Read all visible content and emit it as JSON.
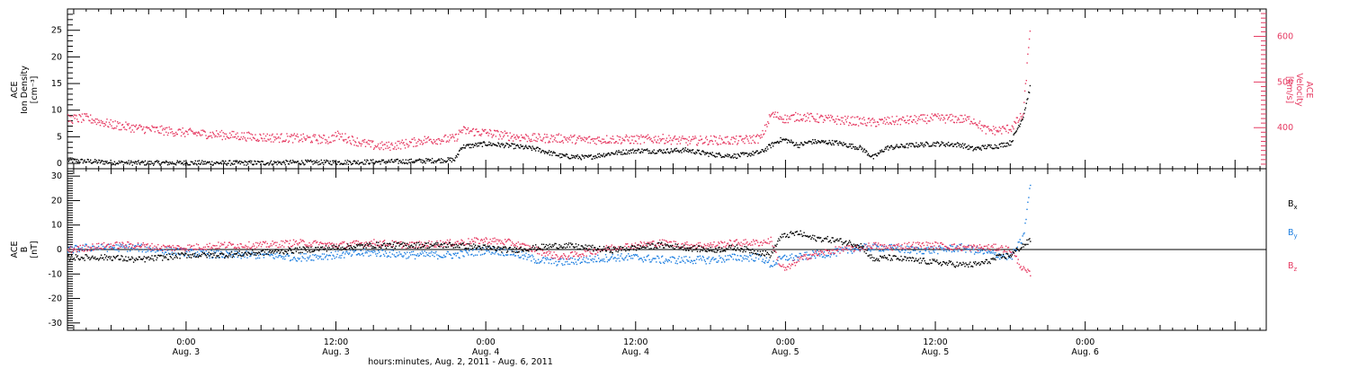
{
  "chart_data": [
    {
      "type": "scatter",
      "panel": "top",
      "title": "",
      "x_axis": {
        "label": "hours:minutes, Aug.  2, 2011 - Aug.  6, 2011",
        "range_hours": [
          -9.5,
          86.5
        ],
        "ticks": [
          {
            "hour": 0,
            "time": "0:00",
            "day": "Aug. 3"
          },
          {
            "hour": 12,
            "time": "12:00",
            "day": "Aug. 3"
          },
          {
            "hour": 24,
            "time": "0:00",
            "day": "Aug. 4"
          },
          {
            "hour": 36,
            "time": "12:00",
            "day": "Aug. 4"
          },
          {
            "hour": 48,
            "time": "0:00",
            "day": "Aug. 5"
          },
          {
            "hour": 60,
            "time": "12:00",
            "day": "Aug. 5"
          },
          {
            "hour": 72,
            "time": "0:00",
            "day": "Aug. 6"
          }
        ]
      },
      "y_left": {
        "label_lines": [
          "ACE",
          "Ion Density",
          "[cm⁻³]"
        ],
        "range": [
          -1,
          29
        ],
        "ticks": [
          0,
          5,
          10,
          15,
          20,
          25
        ]
      },
      "y_right": {
        "label_lines": [
          "ACE",
          "Velocity",
          "[km/s]"
        ],
        "range": [
          310,
          660
        ],
        "ticks": [
          400,
          500,
          600
        ],
        "color": "#e63a62"
      },
      "series": [
        {
          "name": "",
          "axis": "left",
          "color": "#000000",
          "x": [
            -9.5,
            -8,
            -6,
            -4,
            -2,
            0,
            3,
            6,
            9,
            12,
            15,
            18,
            21.5,
            22,
            24,
            26,
            28,
            30,
            32,
            34,
            36,
            38,
            40,
            42,
            44,
            46,
            46.8,
            47.5,
            48,
            49,
            50,
            52,
            54,
            55,
            56,
            58,
            60,
            62,
            63,
            64,
            65,
            66,
            67,
            67.6
          ],
          "y": [
            0.7,
            0.5,
            0.3,
            0.2,
            0.2,
            0.2,
            0.2,
            0.2,
            0.3,
            0.3,
            0.4,
            0.5,
            0.8,
            3.2,
            3.8,
            3.4,
            2.8,
            1.5,
            1.2,
            2.0,
            2.5,
            2.4,
            2.6,
            1.8,
            1.5,
            2.2,
            3.5,
            4.5,
            4.5,
            3.5,
            4.2,
            4.0,
            3.0,
            1.2,
            3.0,
            3.5,
            3.8,
            3.6,
            2.8,
            3.2,
            3.4,
            4.0,
            9.0,
            15.0
          ]
        },
        {
          "name": "",
          "axis": "right",
          "color": "#e63a62",
          "x": [
            -9.5,
            -8,
            -6,
            -4,
            -2,
            0,
            3,
            6,
            9,
            11.5,
            12,
            14,
            15,
            16,
            18,
            19,
            20,
            21.5,
            22,
            24,
            26,
            28,
            30,
            32,
            34,
            36,
            38,
            40,
            42,
            44,
            46,
            46.8,
            47.5,
            48,
            49,
            50,
            52,
            54,
            55,
            56,
            58,
            60,
            62,
            63,
            64,
            65,
            66,
            67,
            67.6
          ],
          "y": [
            420,
            422,
            408,
            400,
            395,
            390,
            385,
            380,
            378,
            375,
            385,
            368,
            362,
            360,
            368,
            374,
            375,
            377,
            395,
            390,
            382,
            378,
            378,
            374,
            376,
            375,
            377,
            372,
            374,
            373,
            378,
            430,
            425,
            420,
            426,
            423,
            418,
            415,
            412,
            415,
            418,
            422,
            420,
            418,
            396,
            395,
            400,
            430,
            640
          ]
        }
      ]
    },
    {
      "type": "scatter",
      "panel": "bottom",
      "title": "",
      "y_left": {
        "label_lines": [
          "ACE",
          "B",
          "[nT]"
        ],
        "range": [
          -33,
          33
        ],
        "ticks": [
          -30,
          -20,
          -10,
          0,
          10,
          20,
          30
        ]
      },
      "legend_position": "right",
      "series": [
        {
          "name": "Bx",
          "name_main": "B",
          "name_sub": "x",
          "color": "#000000",
          "x": [
            -9.5,
            -8,
            -6,
            -4,
            -2,
            0,
            3,
            6,
            9,
            12,
            15,
            18,
            21.5,
            24,
            26,
            28,
            30,
            32,
            34,
            36,
            38,
            40,
            42,
            44,
            46,
            46.8,
            47.5,
            48,
            49,
            50,
            52,
            54,
            55,
            56,
            58,
            60,
            62,
            63,
            64,
            65,
            66,
            67,
            67.6
          ],
          "y": [
            -3,
            -3,
            -3,
            -4,
            -3,
            -2,
            -2,
            -1,
            0,
            1,
            2,
            2,
            2,
            1,
            0,
            1,
            2,
            1,
            0,
            1,
            2,
            1,
            0,
            1,
            -1,
            -2,
            5,
            6,
            7,
            5,
            4,
            2,
            -4,
            -3,
            -4,
            -5,
            -6,
            -6,
            -5,
            -3,
            -2,
            2,
            4
          ]
        },
        {
          "name": "By",
          "name_main": "B",
          "name_sub": "y",
          "color": "#1f7fe0",
          "x": [
            -9.5,
            -8,
            -6,
            -4,
            -2,
            0,
            3,
            6,
            9,
            12,
            15,
            18,
            21.5,
            24,
            26,
            28,
            30,
            32,
            34,
            36,
            38,
            40,
            42,
            44,
            46,
            46.8,
            47.5,
            48,
            49,
            50,
            52,
            54,
            55,
            56,
            58,
            60,
            62,
            63,
            64,
            65,
            66,
            67,
            67.6
          ],
          "y": [
            0,
            1,
            1,
            1,
            0,
            -1,
            -2,
            -2,
            -3,
            -2,
            -1,
            -2,
            -2,
            0,
            -1,
            -4,
            -5,
            -4,
            -3,
            -3,
            -4,
            -4,
            -4,
            -3,
            -3,
            -6,
            -4,
            -3,
            -3,
            -2,
            -1,
            1,
            1,
            1,
            0,
            0,
            1,
            0,
            -1,
            -2,
            -3,
            5,
            28
          ]
        },
        {
          "name": "Bz",
          "name_main": "B",
          "name_sub": "z",
          "color": "#e63a62",
          "x": [
            -9.5,
            -8,
            -6,
            -4,
            -2,
            0,
            3,
            6,
            9,
            12,
            15,
            18,
            21.5,
            24,
            26,
            28,
            30,
            32,
            34,
            36,
            38,
            40,
            42,
            44,
            46,
            46.8,
            47.5,
            48,
            49,
            50,
            52,
            54,
            55,
            56,
            58,
            60,
            62,
            63,
            64,
            65,
            66,
            67,
            67.6
          ],
          "y": [
            0,
            1,
            2,
            2,
            1,
            1,
            2,
            2,
            3,
            2,
            3,
            2,
            3,
            4,
            3,
            0,
            -3,
            -1,
            1,
            2,
            3,
            2,
            2,
            3,
            3,
            4,
            -6,
            -8,
            -4,
            -2,
            0,
            1,
            2,
            1,
            2,
            2,
            1,
            1,
            1,
            1,
            0,
            -8,
            -10
          ]
        }
      ]
    }
  ]
}
